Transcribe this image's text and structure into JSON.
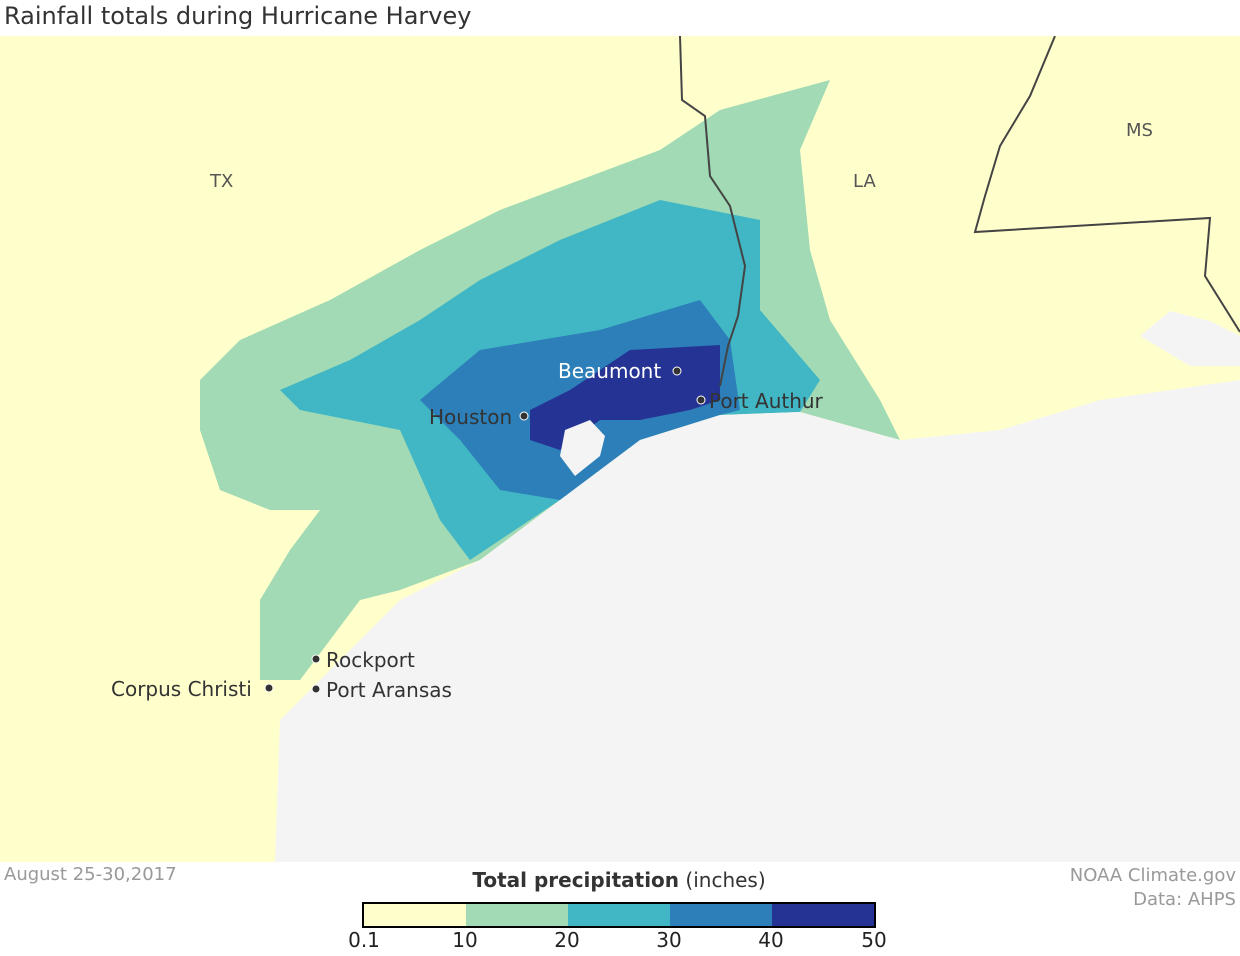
{
  "title": "Rainfall totals during Hurricane Harvey",
  "states": [
    "TX",
    "LA",
    "MS"
  ],
  "cities": [
    {
      "name": "Beaumont",
      "label_color": "#ffffff"
    },
    {
      "name": "Houston",
      "label_color": "#333333"
    },
    {
      "name": "Port Authur",
      "label_color": "#333333"
    },
    {
      "name": "Rockport",
      "label_color": "#333333"
    },
    {
      "name": "Corpus Christi",
      "label_color": "#333333"
    },
    {
      "name": "Port Aransas",
      "label_color": "#333333"
    }
  ],
  "date": "August 25-30,2017",
  "credit": {
    "line1": "NOAA Climate.gov",
    "line2": "Data: AHPS"
  },
  "legend": {
    "title_bold": "Total precipitation",
    "title_unit": "(inches)",
    "ticks": [
      "0.1",
      "10",
      "20",
      "30",
      "40",
      "50"
    ],
    "colors": [
      "#ffffcc",
      "#a1dab4",
      "#41b6c4",
      "#2c7fb8",
      "#253494"
    ]
  },
  "colors": {
    "land": "#ffffcc",
    "water": "#f4f4f4",
    "border": "#444444"
  }
}
